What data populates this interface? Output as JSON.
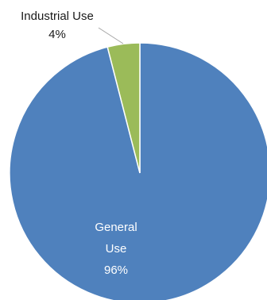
{
  "chart_data": {
    "type": "pie",
    "slices": [
      {
        "label": "General Use",
        "label_lines": [
          "General",
          "Use"
        ],
        "value": 96,
        "value_label": "96%",
        "color": "#4F81BD"
      },
      {
        "label": "Industrial Use",
        "label_lines": [
          "Industrial Use"
        ],
        "value": 4,
        "value_label": "4%",
        "color": "#9BBB59"
      }
    ],
    "legend": "none",
    "start_angle_deg": 0,
    "direction": "clockwise"
  }
}
